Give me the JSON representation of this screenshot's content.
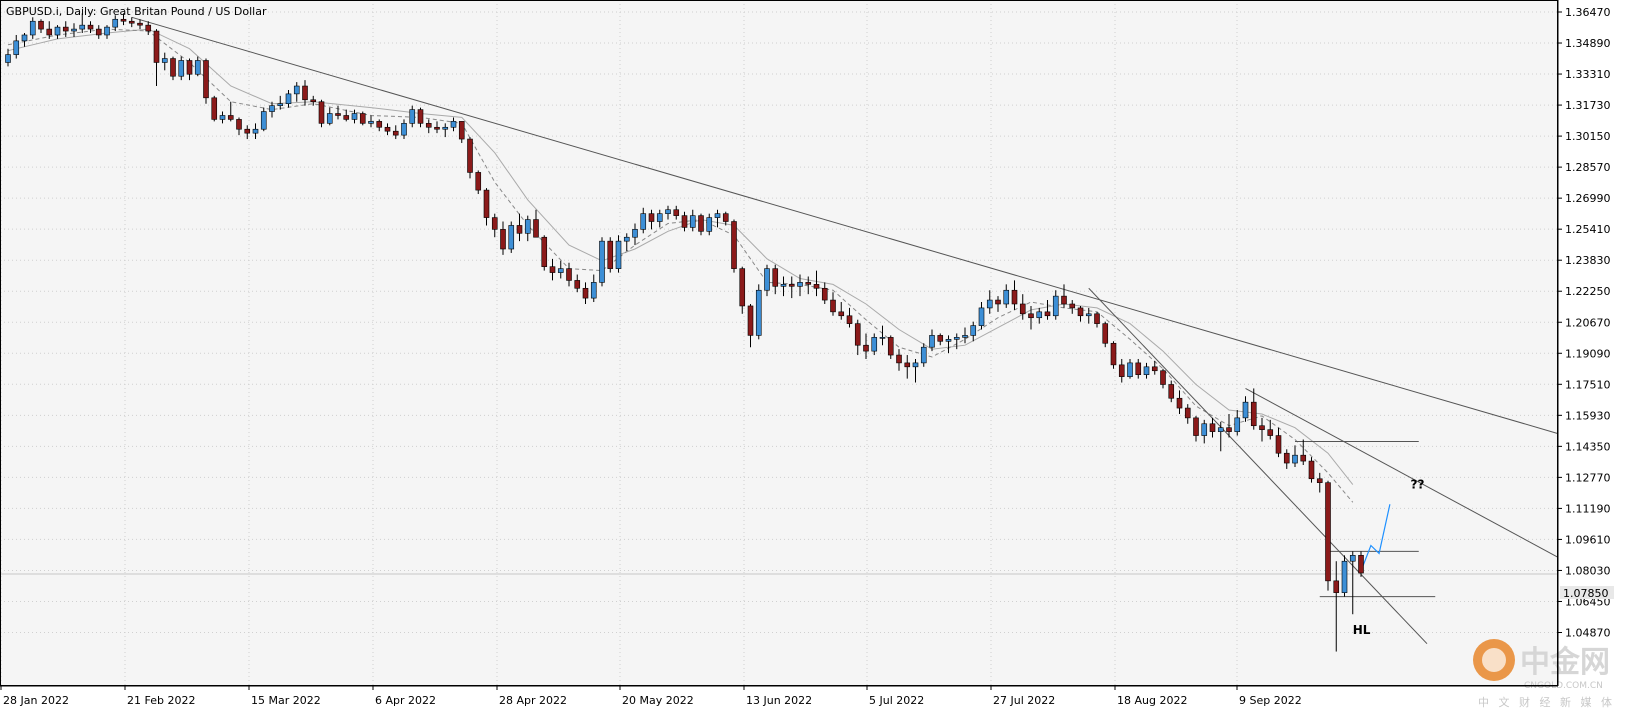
{
  "chart_data": {
    "type": "candlestick",
    "title": "GBPUSD.i, Daily:  Great Britan Pound / US Dollar",
    "current_price_label": "1.07850",
    "price_ticks": [
      "1.36470",
      "1.34890",
      "1.33310",
      "1.31730",
      "1.30150",
      "1.28570",
      "1.26990",
      "1.25410",
      "1.23830",
      "1.22250",
      "1.20670",
      "1.19090",
      "1.17510",
      "1.15930",
      "1.14350",
      "1.12770",
      "1.11190",
      "1.09610",
      "1.08030",
      "1.06450",
      "1.04870"
    ],
    "date_ticks": [
      "28 Jan 2022",
      "21 Feb 2022",
      "15 Mar 2022",
      "6 Apr 2022",
      "28 Apr 2022",
      "20 May 2022",
      "13 Jun 2022",
      "5 Jul 2022",
      "27 Jul 2022",
      "18 Aug 2022",
      "9 Sep 2022"
    ],
    "ylim": [
      1.0355,
      1.367
    ],
    "colors": {
      "up": "#3d8fd6",
      "down": "#8b1a1a",
      "wick": "#000000",
      "sma_fast": "#888888",
      "sma_slow": "#aaaaaa",
      "projection": "#1e90ff",
      "trendline": "#555555",
      "grid": "#d0d0d0",
      "background": "#f5f5f5"
    },
    "candles": [
      [
        1.339,
        1.346,
        1.337,
        1.343
      ],
      [
        1.343,
        1.353,
        1.341,
        1.35
      ],
      [
        1.35,
        1.354,
        1.347,
        1.353
      ],
      [
        1.353,
        1.362,
        1.351,
        1.36
      ],
      [
        1.36,
        1.361,
        1.354,
        1.356
      ],
      [
        1.356,
        1.36,
        1.351,
        1.353
      ],
      [
        1.353,
        1.358,
        1.351,
        1.357
      ],
      [
        1.357,
        1.36,
        1.352,
        1.355
      ],
      [
        1.355,
        1.359,
        1.352,
        1.356
      ],
      [
        1.356,
        1.364,
        1.354,
        1.358
      ],
      [
        1.358,
        1.36,
        1.354,
        1.356
      ],
      [
        1.356,
        1.358,
        1.351,
        1.353
      ],
      [
        1.353,
        1.358,
        1.351,
        1.357
      ],
      [
        1.357,
        1.363,
        1.355,
        1.361
      ],
      [
        1.361,
        1.364,
        1.358,
        1.36
      ],
      [
        1.36,
        1.362,
        1.357,
        1.359
      ],
      [
        1.359,
        1.361,
        1.356,
        1.358
      ],
      [
        1.358,
        1.36,
        1.353,
        1.355
      ],
      [
        1.355,
        1.356,
        1.327,
        1.339
      ],
      [
        1.339,
        1.344,
        1.335,
        1.341
      ],
      [
        1.341,
        1.342,
        1.33,
        1.332
      ],
      [
        1.332,
        1.342,
        1.33,
        1.34
      ],
      [
        1.34,
        1.341,
        1.33,
        1.333
      ],
      [
        1.333,
        1.342,
        1.332,
        1.34
      ],
      [
        1.34,
        1.341,
        1.318,
        1.321
      ],
      [
        1.321,
        1.322,
        1.309,
        1.31
      ],
      [
        1.31,
        1.314,
        1.308,
        1.312
      ],
      [
        1.312,
        1.319,
        1.309,
        1.31
      ],
      [
        1.31,
        1.311,
        1.302,
        1.305
      ],
      [
        1.305,
        1.307,
        1.3,
        1.303
      ],
      [
        1.303,
        1.308,
        1.3,
        1.305
      ],
      [
        1.305,
        1.316,
        1.304,
        1.314
      ],
      [
        1.314,
        1.319,
        1.311,
        1.317
      ],
      [
        1.317,
        1.322,
        1.315,
        1.318
      ],
      [
        1.318,
        1.325,
        1.316,
        1.323
      ],
      [
        1.323,
        1.329,
        1.319,
        1.327
      ],
      [
        1.327,
        1.33,
        1.317,
        1.32
      ],
      [
        1.32,
        1.322,
        1.317,
        1.319
      ],
      [
        1.319,
        1.32,
        1.306,
        1.308
      ],
      [
        1.308,
        1.316,
        1.307,
        1.313
      ],
      [
        1.313,
        1.317,
        1.31,
        1.312
      ],
      [
        1.312,
        1.315,
        1.309,
        1.31
      ],
      [
        1.31,
        1.315,
        1.308,
        1.313
      ],
      [
        1.313,
        1.314,
        1.307,
        1.308
      ],
      [
        1.308,
        1.312,
        1.306,
        1.309
      ],
      [
        1.309,
        1.31,
        1.304,
        1.306
      ],
      [
        1.306,
        1.308,
        1.302,
        1.304
      ],
      [
        1.304,
        1.307,
        1.3,
        1.302
      ],
      [
        1.302,
        1.31,
        1.3,
        1.308
      ],
      [
        1.308,
        1.317,
        1.306,
        1.315
      ],
      [
        1.315,
        1.316,
        1.306,
        1.308
      ],
      [
        1.308,
        1.31,
        1.303,
        1.306
      ],
      [
        1.306,
        1.309,
        1.303,
        1.305
      ],
      [
        1.305,
        1.308,
        1.301,
        1.306
      ],
      [
        1.306,
        1.311,
        1.304,
        1.309
      ],
      [
        1.309,
        1.309,
        1.298,
        1.3
      ],
      [
        1.3,
        1.301,
        1.28,
        1.283
      ],
      [
        1.283,
        1.284,
        1.272,
        1.274
      ],
      [
        1.274,
        1.275,
        1.256,
        1.26
      ],
      [
        1.26,
        1.262,
        1.25,
        1.254
      ],
      [
        1.254,
        1.258,
        1.241,
        1.244
      ],
      [
        1.244,
        1.258,
        1.242,
        1.256
      ],
      [
        1.256,
        1.262,
        1.248,
        1.252
      ],
      [
        1.252,
        1.261,
        1.248,
        1.259
      ],
      [
        1.259,
        1.264,
        1.251,
        1.25
      ],
      [
        1.25,
        1.251,
        1.233,
        1.235
      ],
      [
        1.235,
        1.239,
        1.228,
        1.232
      ],
      [
        1.232,
        1.238,
        1.229,
        1.234
      ],
      [
        1.234,
        1.237,
        1.225,
        1.228
      ],
      [
        1.228,
        1.231,
        1.222,
        1.224
      ],
      [
        1.224,
        1.227,
        1.216,
        1.219
      ],
      [
        1.219,
        1.231,
        1.217,
        1.227
      ],
      [
        1.227,
        1.25,
        1.225,
        1.248
      ],
      [
        1.248,
        1.25,
        1.232,
        1.234
      ],
      [
        1.234,
        1.251,
        1.232,
        1.248
      ],
      [
        1.248,
        1.252,
        1.243,
        1.25
      ],
      [
        1.25,
        1.257,
        1.246,
        1.254
      ],
      [
        1.254,
        1.265,
        1.252,
        1.262
      ],
      [
        1.262,
        1.264,
        1.254,
        1.258
      ],
      [
        1.258,
        1.264,
        1.255,
        1.262
      ],
      [
        1.262,
        1.266,
        1.259,
        1.264
      ],
      [
        1.264,
        1.266,
        1.259,
        1.261
      ],
      [
        1.261,
        1.263,
        1.253,
        1.255
      ],
      [
        1.255,
        1.264,
        1.253,
        1.261
      ],
      [
        1.261,
        1.262,
        1.251,
        1.253
      ],
      [
        1.253,
        1.262,
        1.251,
        1.26
      ],
      [
        1.26,
        1.264,
        1.255,
        1.262
      ],
      [
        1.262,
        1.263,
        1.256,
        1.258
      ],
      [
        1.258,
        1.259,
        1.232,
        1.234
      ],
      [
        1.234,
        1.235,
        1.211,
        1.215
      ],
      [
        1.215,
        1.216,
        1.194,
        1.2
      ],
      [
        1.2,
        1.226,
        1.198,
        1.223
      ],
      [
        1.223,
        1.236,
        1.22,
        1.234
      ],
      [
        1.234,
        1.236,
        1.221,
        1.225
      ],
      [
        1.225,
        1.23,
        1.22,
        1.226
      ],
      [
        1.226,
        1.23,
        1.219,
        1.225
      ],
      [
        1.225,
        1.231,
        1.22,
        1.227
      ],
      [
        1.227,
        1.23,
        1.221,
        1.226
      ],
      [
        1.226,
        1.233,
        1.22,
        1.224
      ],
      [
        1.224,
        1.227,
        1.216,
        1.218
      ],
      [
        1.218,
        1.222,
        1.21,
        1.212
      ],
      [
        1.212,
        1.217,
        1.208,
        1.21
      ],
      [
        1.21,
        1.214,
        1.204,
        1.206
      ],
      [
        1.206,
        1.208,
        1.19,
        1.195
      ],
      [
        1.195,
        1.201,
        1.188,
        1.192
      ],
      [
        1.192,
        1.201,
        1.19,
        1.199
      ],
      [
        1.199,
        1.205,
        1.195,
        1.199
      ],
      [
        1.199,
        1.2,
        1.188,
        1.19
      ],
      [
        1.19,
        1.193,
        1.182,
        1.186
      ],
      [
        1.186,
        1.19,
        1.178,
        1.184
      ],
      [
        1.184,
        1.188,
        1.176,
        1.186
      ],
      [
        1.186,
        1.196,
        1.184,
        1.194
      ],
      [
        1.194,
        1.203,
        1.192,
        1.2
      ],
      [
        1.2,
        1.201,
        1.195,
        1.197
      ],
      [
        1.197,
        1.2,
        1.191,
        1.198
      ],
      [
        1.198,
        1.201,
        1.193,
        1.199
      ],
      [
        1.199,
        1.204,
        1.196,
        1.2
      ],
      [
        1.2,
        1.207,
        1.197,
        1.205
      ],
      [
        1.205,
        1.217,
        1.203,
        1.214
      ],
      [
        1.214,
        1.223,
        1.211,
        1.218
      ],
      [
        1.218,
        1.22,
        1.212,
        1.216
      ],
      [
        1.216,
        1.226,
        1.214,
        1.223
      ],
      [
        1.223,
        1.228,
        1.213,
        1.216
      ],
      [
        1.216,
        1.221,
        1.208,
        1.211
      ],
      [
        1.211,
        1.215,
        1.203,
        1.209
      ],
      [
        1.209,
        1.214,
        1.206,
        1.212
      ],
      [
        1.212,
        1.218,
        1.208,
        1.21
      ],
      [
        1.21,
        1.223,
        1.208,
        1.22
      ],
      [
        1.22,
        1.226,
        1.214,
        1.216
      ],
      [
        1.216,
        1.218,
        1.211,
        1.214
      ],
      [
        1.214,
        1.215,
        1.207,
        1.21
      ],
      [
        1.21,
        1.214,
        1.206,
        1.211
      ],
      [
        1.211,
        1.212,
        1.204,
        1.206
      ],
      [
        1.206,
        1.207,
        1.194,
        1.196
      ],
      [
        1.196,
        1.197,
        1.183,
        1.185
      ],
      [
        1.185,
        1.188,
        1.176,
        1.179
      ],
      [
        1.179,
        1.188,
        1.178,
        1.186
      ],
      [
        1.186,
        1.188,
        1.178,
        1.18
      ],
      [
        1.18,
        1.186,
        1.178,
        1.184
      ],
      [
        1.184,
        1.187,
        1.18,
        1.182
      ],
      [
        1.182,
        1.183,
        1.173,
        1.175
      ],
      [
        1.175,
        1.177,
        1.166,
        1.168
      ],
      [
        1.168,
        1.172,
        1.16,
        1.163
      ],
      [
        1.163,
        1.165,
        1.155,
        1.158
      ],
      [
        1.158,
        1.159,
        1.146,
        1.149
      ],
      [
        1.149,
        1.157,
        1.145,
        1.155
      ],
      [
        1.155,
        1.158,
        1.148,
        1.151
      ],
      [
        1.151,
        1.156,
        1.141,
        1.153
      ],
      [
        1.153,
        1.16,
        1.148,
        1.151
      ],
      [
        1.151,
        1.162,
        1.149,
        1.158
      ],
      [
        1.158,
        1.169,
        1.156,
        1.166
      ],
      [
        1.166,
        1.173,
        1.152,
        1.154
      ],
      [
        1.154,
        1.158,
        1.146,
        1.152
      ],
      [
        1.152,
        1.157,
        1.147,
        1.149
      ],
      [
        1.149,
        1.153,
        1.138,
        1.14
      ],
      [
        1.14,
        1.142,
        1.132,
        1.135
      ],
      [
        1.135,
        1.144,
        1.133,
        1.139
      ],
      [
        1.139,
        1.147,
        1.134,
        1.136
      ],
      [
        1.136,
        1.138,
        1.125,
        1.127
      ],
      [
        1.127,
        1.13,
        1.12,
        1.125
      ],
      [
        1.125,
        1.126,
        1.07,
        1.075
      ],
      [
        1.075,
        1.085,
        1.039,
        1.069
      ],
      [
        1.069,
        1.088,
        1.067,
        1.085
      ],
      [
        1.085,
        1.09,
        1.058,
        1.088
      ],
      [
        1.088,
        1.09,
        1.077,
        1.079
      ]
    ],
    "sma_fast": [
      [
        0,
        1.348
      ],
      [
        6,
        1.353
      ],
      [
        12,
        1.356
      ],
      [
        17,
        1.355
      ],
      [
        22,
        1.339
      ],
      [
        27,
        1.319
      ],
      [
        32,
        1.315
      ],
      [
        37,
        1.318
      ],
      [
        44,
        1.312
      ],
      [
        50,
        1.311
      ],
      [
        55,
        1.308
      ],
      [
        59,
        1.278
      ],
      [
        63,
        1.256
      ],
      [
        68,
        1.234
      ],
      [
        72,
        1.233
      ],
      [
        76,
        1.246
      ],
      [
        80,
        1.257
      ],
      [
        84,
        1.259
      ],
      [
        88,
        1.251
      ],
      [
        92,
        1.227
      ],
      [
        96,
        1.226
      ],
      [
        100,
        1.223
      ],
      [
        104,
        1.208
      ],
      [
        108,
        1.194
      ],
      [
        112,
        1.189
      ],
      [
        116,
        1.198
      ],
      [
        120,
        1.209
      ],
      [
        124,
        1.217
      ],
      [
        128,
        1.214
      ],
      [
        132,
        1.212
      ],
      [
        136,
        1.198
      ],
      [
        140,
        1.183
      ],
      [
        144,
        1.164
      ],
      [
        148,
        1.154
      ],
      [
        152,
        1.159
      ],
      [
        156,
        1.147
      ],
      [
        160,
        1.13
      ],
      [
        163,
        1.115
      ]
    ],
    "sma_slow": [
      [
        0,
        1.345
      ],
      [
        6,
        1.351
      ],
      [
        12,
        1.354
      ],
      [
        17,
        1.356
      ],
      [
        22,
        1.346
      ],
      [
        27,
        1.327
      ],
      [
        32,
        1.318
      ],
      [
        37,
        1.319
      ],
      [
        44,
        1.316
      ],
      [
        50,
        1.313
      ],
      [
        55,
        1.311
      ],
      [
        59,
        1.293
      ],
      [
        63,
        1.269
      ],
      [
        68,
        1.246
      ],
      [
        72,
        1.238
      ],
      [
        76,
        1.244
      ],
      [
        80,
        1.253
      ],
      [
        84,
        1.259
      ],
      [
        88,
        1.256
      ],
      [
        92,
        1.239
      ],
      [
        96,
        1.229
      ],
      [
        100,
        1.226
      ],
      [
        104,
        1.216
      ],
      [
        108,
        1.203
      ],
      [
        112,
        1.193
      ],
      [
        116,
        1.195
      ],
      [
        120,
        1.204
      ],
      [
        124,
        1.213
      ],
      [
        128,
        1.216
      ],
      [
        132,
        1.214
      ],
      [
        136,
        1.206
      ],
      [
        140,
        1.192
      ],
      [
        144,
        1.175
      ],
      [
        148,
        1.162
      ],
      [
        152,
        1.16
      ],
      [
        156,
        1.153
      ],
      [
        160,
        1.14
      ],
      [
        163,
        1.124
      ]
    ],
    "projection": [
      [
        1.08,
        1.093
      ],
      [
        1.089,
        1.114
      ]
    ],
    "levels": [
      {
        "value": 1.146,
        "from": 156,
        "to": 171
      },
      {
        "value": 1.09,
        "from": 160,
        "to": 171
      },
      {
        "value": 1.067,
        "from": 159,
        "to": 173
      }
    ],
    "annotations": [
      {
        "text": "??",
        "x": 170,
        "y": 1.122
      },
      {
        "text": "HL",
        "x": 163,
        "y": 1.048
      }
    ],
    "watermark": {
      "brand": "中金网",
      "url": "CNGOLD.COM.CN",
      "tagline": "中 文 财 经 新 媒 体"
    }
  }
}
